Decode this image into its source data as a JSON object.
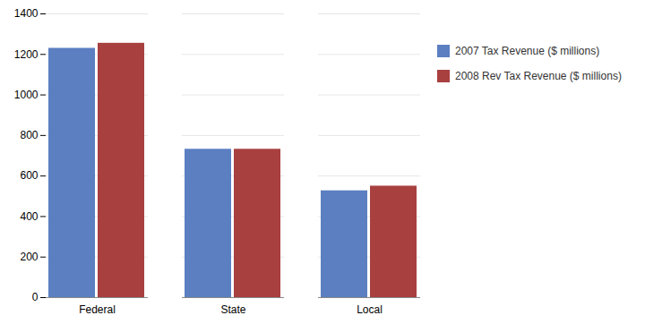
{
  "chart_data": {
    "type": "bar",
    "categories": [
      "Federal",
      "State",
      "Local"
    ],
    "series": [
      {
        "name": "2007 Tax Revenue ($ millions)",
        "color": "#5B7FC1",
        "values": [
          1230,
          732,
          527
        ]
      },
      {
        "name": "2008 Rev Tax Revenue ($ millions)",
        "color": "#A84040",
        "values": [
          1255,
          732,
          550
        ]
      }
    ],
    "ylim": [
      0,
      1400
    ],
    "yticks": [
      0,
      200,
      400,
      600,
      800,
      1000,
      1200,
      1400
    ],
    "grid": true,
    "legend": "right"
  }
}
